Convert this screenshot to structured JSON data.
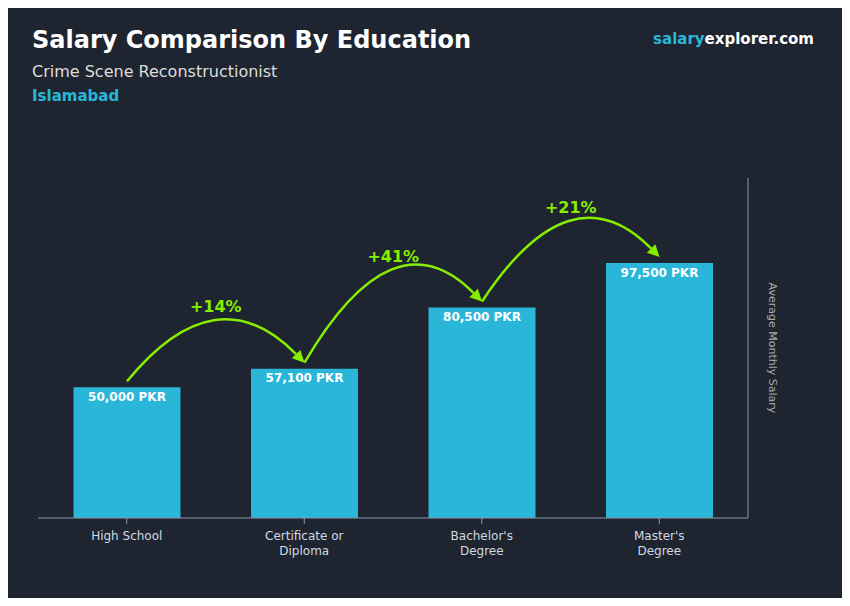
{
  "chart_data": {
    "type": "bar",
    "title": "Salary Comparison By Education",
    "subtitle": "Crime Scene Reconstructionist",
    "ylabel": "Average Monthly Salary",
    "categories": [
      "High School",
      "Certificate or\nDiploma",
      "Bachelor's\nDegree",
      "Master's\nDegree"
    ],
    "values": [
      50000,
      57100,
      80500,
      97500
    ],
    "value_labels": [
      "50,000 PKR",
      "57,100 PKR",
      "80,500 PKR",
      "97,500 PKR"
    ],
    "data_labels": true,
    "color": "#29b6d8",
    "ylim": [
      0,
      130000
    ],
    "tick_labels": "x",
    "grid": false,
    "annotations": [
      {
        "text": "Islamabad",
        "color": "#29b6d8"
      },
      {
        "text": "salary",
        "color": "#29b6d8"
      },
      {
        "text": "explorer",
        "color": "#ffffff"
      },
      {
        "text": ".com",
        "color": "#ffffff"
      },
      {
        "text": "+14%",
        "color": "#88ee00"
      },
      {
        "text": "+41%",
        "color": "#88ee00"
      },
      {
        "text": "+21%",
        "color": "#88ee00"
      }
    ]
  }
}
